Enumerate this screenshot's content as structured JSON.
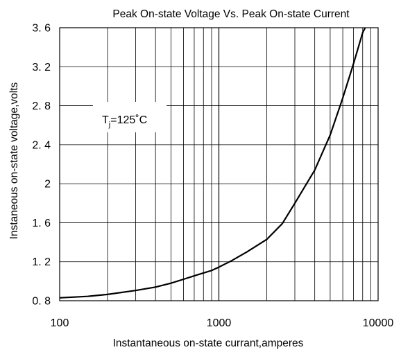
{
  "chart_data": {
    "type": "line",
    "title": "Peak  On-state  Voltage  Vs. Peak  On-state  Current",
    "xlabel": "Instantaneous on-state currant,amperes",
    "ylabel": "Instaneous on-state voltage,volts",
    "x_scale": "log",
    "xlim": [
      100,
      10000
    ],
    "ylim": [
      0.8,
      3.6
    ],
    "x_ticks": [
      100,
      1000,
      10000
    ],
    "x_tick_labels": [
      "100",
      "1000",
      "10000"
    ],
    "y_ticks": [
      0.8,
      1.2,
      1.6,
      2.0,
      2.4,
      2.8,
      3.2,
      3.6
    ],
    "y_tick_labels": [
      "0. 8",
      "1. 2",
      "1. 6",
      "2",
      "2. 4",
      "2. 8",
      "3. 2",
      "3. 6"
    ],
    "grid": true,
    "annotation": {
      "main": "T",
      "sub": "j",
      "rest": "=125˚C"
    },
    "series": [
      {
        "x": [
          100,
          150,
          200,
          300,
          400,
          500,
          600,
          700,
          800,
          900,
          1000,
          1200,
          1500,
          2000,
          2500,
          3000,
          4000,
          5000,
          6000,
          7000,
          8000,
          8300
        ],
        "y": [
          0.83,
          0.845,
          0.865,
          0.905,
          0.94,
          0.98,
          1.02,
          1.055,
          1.085,
          1.11,
          1.145,
          1.21,
          1.3,
          1.43,
          1.59,
          1.8,
          2.14,
          2.5,
          2.88,
          3.23,
          3.55,
          3.6
        ]
      }
    ]
  }
}
